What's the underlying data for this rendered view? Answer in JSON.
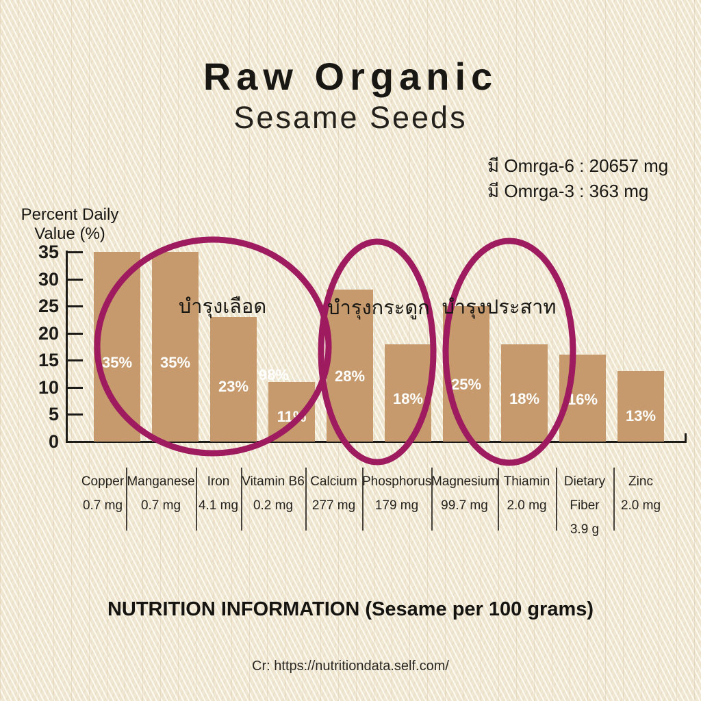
{
  "header": {
    "title": "Raw Organic",
    "subtitle": "Sesame Seeds",
    "omega_line1": "มี Omrga-6 : 20657 mg",
    "omega_line2": "มี Omrga-3 : 363 mg"
  },
  "chart_data": {
    "type": "bar",
    "title": "",
    "xlabel": "",
    "ylabel": "Percent Daily Value (%)",
    "ylabel_line1": "Percent Daily",
    "ylabel_line2": "Value (%)",
    "ylim": [
      0,
      35
    ],
    "yticks": [
      35,
      30,
      25,
      20,
      15,
      10,
      5,
      0
    ],
    "grid": false,
    "legend": false,
    "bar_color": "#c69a6c",
    "highlight_color": "#9e1b60",
    "categories": [
      "Copper",
      "Manganese",
      "Iron",
      "Vitamin B6",
      "Calcium",
      "Phosphorus",
      "Magnesium",
      "Thiamin",
      "Dietary Fiber",
      "Zinc"
    ],
    "category_lines": [
      [
        "Copper"
      ],
      [
        "Manganese"
      ],
      [
        "Iron"
      ],
      [
        "Vitamin B6"
      ],
      [
        "Calcium"
      ],
      [
        "Phosphorus"
      ],
      [
        "Magnesium"
      ],
      [
        "Thiamin"
      ],
      [
        "Dietary",
        "Fiber"
      ],
      [
        "Zinc"
      ]
    ],
    "amounts": [
      "0.7 mg",
      "0.7 mg",
      "4.1 mg",
      "0.2 mg",
      "277 mg",
      "179 mg",
      "99.7 mg",
      "2.0 mg",
      "3.9 g",
      "2.0 mg"
    ],
    "values": [
      35,
      35,
      23,
      11,
      28,
      18,
      25,
      18,
      16,
      13
    ],
    "bar_labels": [
      "35%",
      "35%",
      "23%",
      "11%",
      "28%",
      "18%",
      "25%",
      "18%",
      "16%",
      "13%"
    ],
    "stray_label": "98%",
    "circled_groups": [
      {
        "label": "บำรุงเลือด",
        "categories": [
          "Copper",
          "Manganese",
          "Iron",
          "Vitamin B6"
        ]
      },
      {
        "label": "บำรุงกระดูก",
        "categories": [
          "Calcium",
          "Phosphorus"
        ]
      },
      {
        "label": "บำรุงประสาท",
        "categories": [
          "Magnesium",
          "Thiamin"
        ]
      }
    ]
  },
  "footer": {
    "title": "NUTRITION INFORMATION (Sesame per 100 grams)",
    "credit": "Cr: https://nutritiondata.self.com/"
  },
  "colors": {
    "background": "#f0e7d3",
    "bar": "#c69a6c",
    "highlight": "#9e1b60",
    "text": "#191714",
    "bar_label_text": "#ffffff"
  }
}
